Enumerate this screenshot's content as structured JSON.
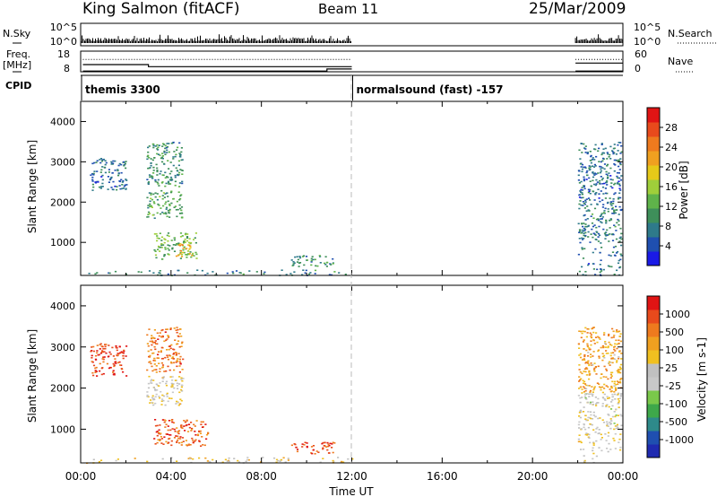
{
  "header": {
    "station": "King Salmon (fitACF)",
    "beam": "Beam 11",
    "date": "25/Mar/2009"
  },
  "chart_data": [
    {
      "type": "line",
      "panel": "noise",
      "left_label": "N.Sky",
      "right_label": "N.Search",
      "left_ticks": [
        "10^5",
        "10^0"
      ],
      "right_ticks": [
        "10^5",
        "10^0"
      ],
      "segments": [
        [
          0,
          12
        ],
        [
          21.9,
          24
        ]
      ]
    },
    {
      "type": "line",
      "panel": "frequency",
      "left_label_line1": "Freq.",
      "left_label_line2": "[MHz]",
      "right_label": "Nave",
      "left_ticks": [
        "18",
        "8"
      ],
      "right_ticks": [
        "60",
        "0"
      ],
      "freq_series": [
        {
          "x": [
            0.1,
            3.0,
            3.0,
            12.0
          ],
          "y": [
            11.5,
            11.5,
            10.5,
            10.5
          ]
        },
        {
          "x": [
            21.9,
            24.0
          ],
          "y": [
            12.2,
            12.2
          ]
        }
      ],
      "nave_series": [
        {
          "x": [
            0.1,
            10.9,
            10.9,
            12.0
          ],
          "y": [
            2,
            2,
            8,
            8
          ]
        },
        {
          "x": [
            21.9,
            24.0
          ],
          "y": [
            2,
            2
          ]
        }
      ]
    },
    {
      "type": "table",
      "panel": "cpid",
      "label": "CPID",
      "entries": [
        {
          "start": 0,
          "text": "themis 3300"
        },
        {
          "start": 12.0,
          "text": "normalsound (fast) -157"
        }
      ]
    },
    {
      "type": "heatmap",
      "panel": "power",
      "ylabel": "Slant Range [km]",
      "yticks": [
        1000,
        2000,
        3000,
        4000
      ],
      "ylim": [
        180,
        4500
      ],
      "xlim": [
        0,
        24
      ],
      "colorbar": {
        "label": "Power [dB]",
        "range": [
          0,
          32
        ],
        "ticks": [
          "4",
          "8",
          "12",
          "16",
          "20",
          "24",
          "28"
        ],
        "colors": [
          "#1a1ae6",
          "#1f4fb0",
          "#2e7a8a",
          "#3e8f5a",
          "#5fb34a",
          "#9fcf3a",
          "#e6c919",
          "#f0a020",
          "#ee7a1e",
          "#e84a1c",
          "#e01414"
        ]
      },
      "regions": [
        {
          "x0": 2.9,
          "x1": 4.5,
          "y0": 2400,
          "y1": 3500,
          "level": 0.3
        },
        {
          "x0": 2.9,
          "x1": 4.5,
          "y0": 1600,
          "y1": 2300,
          "level": 0.35
        },
        {
          "x0": 3.2,
          "x1": 5.1,
          "y0": 600,
          "y1": 1250,
          "level": 0.4
        },
        {
          "x0": 4.2,
          "x1": 4.9,
          "y0": 650,
          "y1": 1000,
          "level": 0.7
        },
        {
          "x0": 9.3,
          "x1": 11.2,
          "y0": 420,
          "y1": 700,
          "level": 0.3
        },
        {
          "x0": 0.2,
          "x1": 12.0,
          "y0": 190,
          "y1": 330,
          "level": 0.25
        },
        {
          "x0": 22.0,
          "x1": 23.9,
          "y0": 1000,
          "y1": 1900,
          "level": 0.25
        },
        {
          "x0": 22.0,
          "x1": 23.9,
          "y0": 190,
          "y1": 950,
          "level": 0.2
        },
        {
          "x0": 22.0,
          "x1": 23.9,
          "y0": 1900,
          "y1": 3500,
          "level": 0.2
        },
        {
          "x0": 0.4,
          "x1": 2.0,
          "y0": 2300,
          "y1": 3100,
          "level": 0.2
        }
      ]
    },
    {
      "type": "heatmap",
      "panel": "velocity",
      "ylabel": "Slant Range [km]",
      "xlabel": "Time UT",
      "yticks": [
        1000,
        2000,
        3000,
        4000
      ],
      "ylim": [
        180,
        4500
      ],
      "xlim": [
        0,
        24
      ],
      "xticks": [
        "00:00",
        "04:00",
        "08:00",
        "12:00",
        "16:00",
        "20:00",
        "00:00"
      ],
      "colorbar": {
        "label": "Velocity [m s-1]",
        "ticks": [
          "1000",
          "500",
          "100",
          "25",
          "-25",
          "-100",
          "-500",
          "-1000"
        ],
        "colors": [
          "#1f2ab0",
          "#1f4fb0",
          "#2e8a8a",
          "#3ea84a",
          "#7ac84a",
          "#c8c8c8",
          "#c0c0c0",
          "#f0c020",
          "#f0a020",
          "#ee7a1e",
          "#e84a1c",
          "#e01414"
        ]
      },
      "regions": [
        {
          "x0": 2.9,
          "x1": 4.5,
          "y0": 2400,
          "y1": 3500,
          "level": 0.8
        },
        {
          "x0": 2.9,
          "x1": 4.5,
          "y0": 1600,
          "y1": 2300,
          "level": 0.55
        },
        {
          "x0": 3.2,
          "x1": 5.6,
          "y0": 600,
          "y1": 1250,
          "level": 0.85
        },
        {
          "x0": 9.3,
          "x1": 11.2,
          "y0": 420,
          "y1": 700,
          "level": 0.87
        },
        {
          "x0": 0.2,
          "x1": 12.0,
          "y0": 190,
          "y1": 330,
          "level": 0.6
        },
        {
          "x0": 22.0,
          "x1": 23.9,
          "y0": 1000,
          "y1": 1900,
          "level": 0.53
        },
        {
          "x0": 22.0,
          "x1": 23.9,
          "y0": 190,
          "y1": 950,
          "level": 0.55
        },
        {
          "x0": 22.0,
          "x1": 23.9,
          "y0": 1900,
          "y1": 3500,
          "level": 0.7
        },
        {
          "x0": 0.4,
          "x1": 2.0,
          "y0": 2300,
          "y1": 3100,
          "level": 0.9
        }
      ]
    }
  ]
}
